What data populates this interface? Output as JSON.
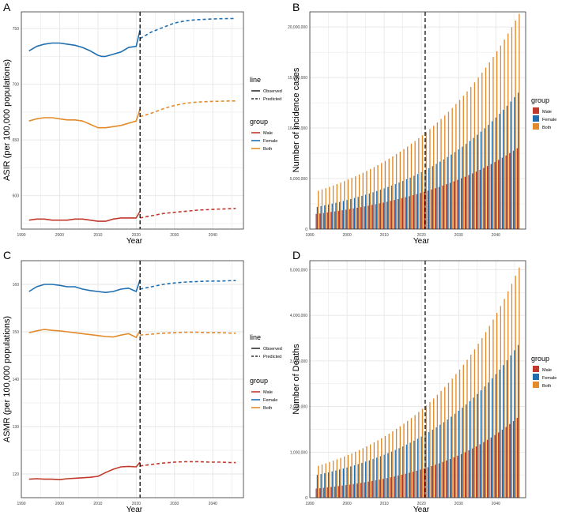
{
  "figure": {
    "panel_labels": [
      "A",
      "B",
      "C",
      "D"
    ]
  },
  "colors": {
    "male": "#c0392b",
    "female": "#1f6fb0",
    "both": "#e38a2a",
    "grid": "#e6e6e6",
    "frame": "#333333"
  },
  "legends": {
    "line_title": "line",
    "line_items": [
      "Observed",
      "Predicted"
    ],
    "group_title": "group",
    "group_items": [
      "Male",
      "Female",
      "Both"
    ]
  },
  "chart_data": [
    {
      "panel": "A",
      "type": "line",
      "xlabel": "Year",
      "ylabel": "ASIR (per 100,000 populations)",
      "xlim": [
        1990,
        2048
      ],
      "ylim": [
        570,
        765
      ],
      "xticks": [
        1990,
        2000,
        2010,
        2020,
        2030,
        2040
      ],
      "yticks": [
        600,
        650,
        700,
        750
      ],
      "vline": 2021,
      "series": [
        {
          "name": "Female",
          "line": "Observed",
          "x": [
            1992,
            1994,
            1996,
            1998,
            2000,
            2002,
            2004,
            2006,
            2008,
            2010,
            2011,
            2012,
            2014,
            2016,
            2018,
            2020,
            2021
          ],
          "values": [
            730,
            734,
            736,
            737,
            737,
            736,
            735,
            733,
            730,
            726,
            725,
            725,
            727,
            729,
            733,
            734,
            749
          ]
        },
        {
          "name": "Female",
          "line": "Predicted",
          "x": [
            2021,
            2024,
            2027,
            2030,
            2033,
            2036,
            2039,
            2042,
            2045,
            2046
          ],
          "values": [
            741,
            747,
            751,
            755,
            757,
            758,
            758.5,
            758.8,
            759,
            759
          ]
        },
        {
          "name": "Both",
          "line": "Observed",
          "x": [
            1992,
            1994,
            1996,
            1998,
            2000,
            2002,
            2004,
            2006,
            2008,
            2010,
            2012,
            2014,
            2016,
            2018,
            2020,
            2021
          ],
          "values": [
            667,
            669,
            670,
            670,
            669,
            668,
            668,
            667,
            664,
            661,
            661,
            662,
            663,
            665,
            667,
            678
          ]
        },
        {
          "name": "Both",
          "line": "Predicted",
          "x": [
            2021,
            2024,
            2027,
            2030,
            2033,
            2036,
            2039,
            2042,
            2045,
            2046
          ],
          "values": [
            671,
            674,
            678,
            681,
            683,
            684,
            684.5,
            684.8,
            685,
            685
          ]
        },
        {
          "name": "Male",
          "line": "Observed",
          "x": [
            1992,
            1994,
            1996,
            1998,
            2000,
            2002,
            2004,
            2006,
            2008,
            2010,
            2012,
            2014,
            2016,
            2018,
            2020,
            2021
          ],
          "values": [
            578,
            579,
            579,
            578,
            578,
            578,
            579,
            579,
            578,
            577,
            577,
            579,
            580,
            580,
            580,
            586
          ]
        },
        {
          "name": "Male",
          "line": "Predicted",
          "x": [
            2021,
            2024,
            2027,
            2030,
            2033,
            2036,
            2039,
            2042,
            2045,
            2046
          ],
          "values": [
            580,
            582,
            584,
            585,
            586,
            587,
            587.5,
            588,
            588.3,
            588.5
          ]
        }
      ]
    },
    {
      "panel": "B",
      "type": "bar",
      "xlabel": "Year",
      "ylabel": "Number of incidence cases",
      "xlim": [
        1990,
        2048
      ],
      "ylim": [
        0,
        21500000
      ],
      "xticks": [
        1990,
        2000,
        2010,
        2020,
        2030,
        2040
      ],
      "yticks": [
        0,
        5000000,
        10000000,
        15000000,
        20000000
      ],
      "ytick_labels": [
        "0",
        "5,000,000",
        "10,000,000",
        "15,000,000",
        "20,000,000"
      ],
      "vline": 2021,
      "years": "1992-2046",
      "series": [
        {
          "name": "Male",
          "start": 1500000,
          "end": 8000000
        },
        {
          "name": "Female",
          "start": 2200000,
          "end": 13500000
        },
        {
          "name": "Both",
          "start": 3800000,
          "end": 21300000
        }
      ]
    },
    {
      "panel": "C",
      "type": "line",
      "xlabel": "Year",
      "ylabel": "ASMR (per 100,000 populations)",
      "xlim": [
        1990,
        2048
      ],
      "ylim": [
        115,
        165
      ],
      "xticks": [
        1990,
        2000,
        2010,
        2020,
        2030,
        2040
      ],
      "yticks": [
        120,
        130,
        140,
        150,
        160
      ],
      "vline": 2021,
      "series": [
        {
          "name": "Female",
          "line": "Observed",
          "x": [
            1992,
            1994,
            1996,
            1998,
            2000,
            2002,
            2004,
            2006,
            2008,
            2010,
            2012,
            2014,
            2016,
            2018,
            2020,
            2021
          ],
          "values": [
            158.5,
            159.5,
            160,
            160,
            159.8,
            159.5,
            159.5,
            159,
            158.7,
            158.5,
            158.3,
            158.5,
            159,
            159.2,
            158.5,
            161
          ]
        },
        {
          "name": "Female",
          "line": "Predicted",
          "x": [
            2021,
            2024,
            2027,
            2030,
            2033,
            2036,
            2039,
            2042,
            2045,
            2046
          ],
          "values": [
            159,
            159.5,
            160,
            160.3,
            160.5,
            160.6,
            160.7,
            160.7,
            160.8,
            160.8
          ]
        },
        {
          "name": "Both",
          "line": "Observed",
          "x": [
            1992,
            1994,
            1996,
            1998,
            2000,
            2002,
            2004,
            2006,
            2008,
            2010,
            2012,
            2014,
            2016,
            2018,
            2020,
            2021
          ],
          "values": [
            149.8,
            150.2,
            150.5,
            150.3,
            150.2,
            150,
            149.8,
            149.6,
            149.4,
            149.2,
            149,
            148.9,
            149.3,
            149.6,
            148.8,
            150.3
          ]
        },
        {
          "name": "Both",
          "line": "Predicted",
          "x": [
            2021,
            2024,
            2027,
            2030,
            2033,
            2036,
            2039,
            2042,
            2045,
            2046
          ],
          "values": [
            149.3,
            149.5,
            149.7,
            149.8,
            149.9,
            149.9,
            149.8,
            149.8,
            149.7,
            149.7
          ]
        },
        {
          "name": "Male",
          "line": "Observed",
          "x": [
            1992,
            1994,
            1996,
            1998,
            2000,
            2002,
            2004,
            2006,
            2008,
            2010,
            2012,
            2014,
            2016,
            2018,
            2020,
            2021
          ],
          "values": [
            118.9,
            119,
            118.9,
            118.9,
            118.8,
            119,
            119.1,
            119.2,
            119.3,
            119.5,
            120.3,
            121,
            121.5,
            121.6,
            121.5,
            122.5
          ]
        },
        {
          "name": "Male",
          "line": "Predicted",
          "x": [
            2021,
            2024,
            2027,
            2030,
            2033,
            2036,
            2039,
            2042,
            2045,
            2046
          ],
          "values": [
            121.7,
            122,
            122.3,
            122.5,
            122.6,
            122.6,
            122.5,
            122.5,
            122.4,
            122.4
          ]
        }
      ]
    },
    {
      "panel": "D",
      "type": "bar",
      "xlabel": "Year",
      "ylabel": "Number of Deaths",
      "xlim": [
        1990,
        2048
      ],
      "ylim": [
        0,
        5200000
      ],
      "xticks": [
        1990,
        2000,
        2010,
        2020,
        2030,
        2040
      ],
      "yticks": [
        0,
        1000000,
        2000000,
        3000000,
        4000000,
        5000000
      ],
      "ytick_labels": [
        "0",
        "1,000,000",
        "2,000,000",
        "3,000,000",
        "4,000,000",
        "5,000,000"
      ],
      "vline": 2021,
      "years": "1992-2046",
      "series": [
        {
          "name": "Male",
          "start": 200000,
          "end": 1750000
        },
        {
          "name": "Female",
          "start": 500000,
          "end": 3350000
        },
        {
          "name": "Both",
          "start": 700000,
          "end": 5050000
        }
      ]
    }
  ]
}
